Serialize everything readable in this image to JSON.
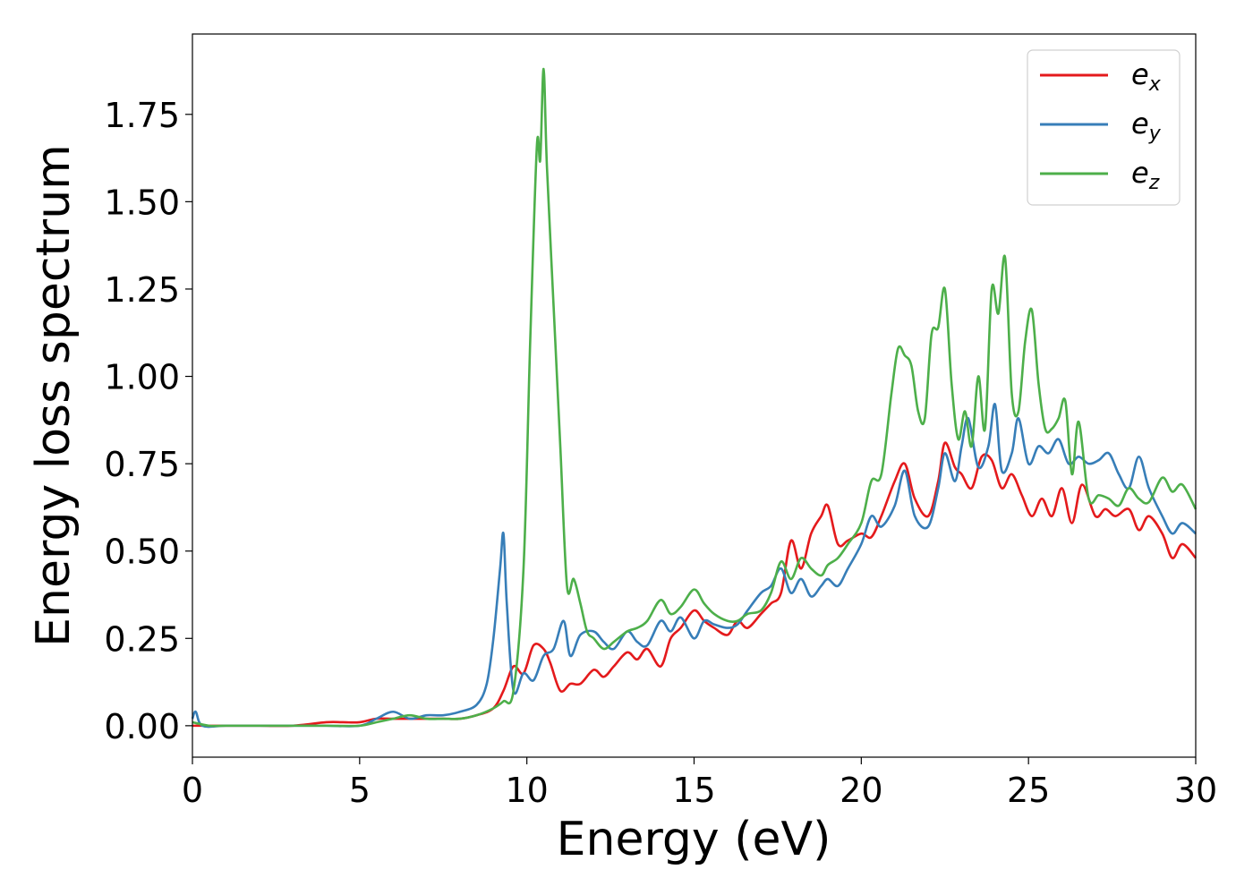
{
  "chart_data": {
    "type": "line",
    "xlabel": "Energy (eV)",
    "ylabel": "Energy loss spectrum",
    "xlim": [
      0,
      30
    ],
    "ylim": [
      -0.09,
      1.98
    ],
    "xticks": [
      0,
      5,
      10,
      15,
      20,
      25,
      30
    ],
    "xtick_labels": [
      "0",
      "5",
      "10",
      "15",
      "20",
      "25",
      "30"
    ],
    "yticks": [
      0.0,
      0.25,
      0.5,
      0.75,
      1.0,
      1.25,
      1.5,
      1.75
    ],
    "ytick_labels": [
      "0.00",
      "0.25",
      "0.50",
      "0.75",
      "1.00",
      "1.25",
      "1.50",
      "1.75"
    ],
    "grid": false,
    "legend_position": "top-right",
    "series": [
      {
        "name": "e_x",
        "legend_base": "e",
        "legend_sub": "x",
        "color": "#e41a1c",
        "x": [
          0,
          1,
          2,
          3,
          4,
          4.5,
          5,
          5.5,
          6,
          6.5,
          7,
          7.5,
          8,
          8.5,
          9,
          9.3,
          9.6,
          9.9,
          10.2,
          10.5,
          10.7,
          11,
          11.3,
          11.6,
          12,
          12.3,
          12.6,
          13,
          13.3,
          13.6,
          14,
          14.3,
          14.6,
          15,
          15.3,
          15.6,
          16,
          16.3,
          16.6,
          17,
          17.3,
          17.6,
          17.9,
          18.2,
          18.5,
          18.8,
          19,
          19.3,
          19.6,
          20,
          20.3,
          20.6,
          21,
          21.3,
          21.6,
          22,
          22.3,
          22.5,
          22.8,
          23,
          23.3,
          23.6,
          23.9,
          24.2,
          24.5,
          24.8,
          25.1,
          25.4,
          25.7,
          26,
          26.3,
          26.6,
          27,
          27.3,
          27.6,
          28,
          28.3,
          28.6,
          29,
          29.3,
          29.6,
          30
        ],
        "y": [
          0.0,
          0.0,
          0.0,
          0.0,
          0.01,
          0.01,
          0.01,
          0.02,
          0.02,
          0.02,
          0.02,
          0.02,
          0.02,
          0.03,
          0.05,
          0.1,
          0.17,
          0.15,
          0.23,
          0.22,
          0.18,
          0.1,
          0.12,
          0.12,
          0.16,
          0.14,
          0.17,
          0.21,
          0.19,
          0.22,
          0.17,
          0.25,
          0.28,
          0.33,
          0.3,
          0.28,
          0.26,
          0.3,
          0.28,
          0.32,
          0.35,
          0.38,
          0.53,
          0.45,
          0.55,
          0.6,
          0.63,
          0.52,
          0.53,
          0.55,
          0.54,
          0.6,
          0.7,
          0.75,
          0.65,
          0.6,
          0.7,
          0.81,
          0.74,
          0.72,
          0.68,
          0.77,
          0.76,
          0.68,
          0.72,
          0.66,
          0.6,
          0.65,
          0.6,
          0.68,
          0.58,
          0.69,
          0.6,
          0.62,
          0.6,
          0.62,
          0.56,
          0.6,
          0.55,
          0.48,
          0.52,
          0.48
        ]
      },
      {
        "name": "e_y",
        "legend_base": "e",
        "legend_sub": "y",
        "color": "#377eb8",
        "x": [
          0,
          0.1,
          0.3,
          1,
          2,
          3,
          4,
          5,
          5.5,
          6,
          6.5,
          7,
          7.5,
          8,
          8.5,
          8.8,
          9.0,
          9.2,
          9.3,
          9.4,
          9.6,
          9.9,
          10.2,
          10.5,
          10.8,
          11.1,
          11.3,
          11.6,
          12,
          12.3,
          12.6,
          13,
          13.3,
          13.6,
          14,
          14.3,
          14.6,
          15,
          15.3,
          15.6,
          16,
          16.3,
          16.6,
          17,
          17.3,
          17.6,
          17.9,
          18.2,
          18.5,
          18.8,
          19,
          19.3,
          19.6,
          20,
          20.3,
          20.6,
          21,
          21.3,
          21.6,
          22,
          22.3,
          22.5,
          22.8,
          23,
          23.2,
          23.5,
          23.8,
          24,
          24.2,
          24.5,
          24.7,
          25,
          25.3,
          25.6,
          25.9,
          26.2,
          26.5,
          26.8,
          27.1,
          27.4,
          27.7,
          28,
          28.3,
          28.6,
          29,
          29.3,
          29.6,
          30
        ],
        "y": [
          0.02,
          0.04,
          0.0,
          0.0,
          0.0,
          0.0,
          0.0,
          0.0,
          0.02,
          0.04,
          0.02,
          0.03,
          0.03,
          0.04,
          0.06,
          0.12,
          0.25,
          0.45,
          0.55,
          0.35,
          0.1,
          0.15,
          0.13,
          0.2,
          0.22,
          0.3,
          0.2,
          0.26,
          0.27,
          0.24,
          0.22,
          0.27,
          0.24,
          0.23,
          0.3,
          0.27,
          0.31,
          0.25,
          0.3,
          0.29,
          0.28,
          0.29,
          0.33,
          0.38,
          0.4,
          0.45,
          0.38,
          0.42,
          0.37,
          0.4,
          0.42,
          0.4,
          0.45,
          0.52,
          0.6,
          0.57,
          0.63,
          0.73,
          0.6,
          0.57,
          0.68,
          0.78,
          0.7,
          0.8,
          0.88,
          0.74,
          0.8,
          0.92,
          0.73,
          0.78,
          0.88,
          0.75,
          0.8,
          0.78,
          0.82,
          0.75,
          0.77,
          0.75,
          0.76,
          0.78,
          0.72,
          0.68,
          0.77,
          0.68,
          0.6,
          0.55,
          0.58,
          0.55
        ]
      },
      {
        "name": "e_z",
        "legend_base": "e",
        "legend_sub": "z",
        "color": "#4daf4a",
        "x": [
          0,
          0.5,
          1,
          2,
          3,
          4,
          5,
          5.5,
          6,
          6.5,
          7,
          7.5,
          8,
          8.5,
          9,
          9.3,
          9.6,
          9.9,
          10.1,
          10.3,
          10.4,
          10.5,
          10.6,
          10.8,
          11.0,
          11.2,
          11.4,
          11.6,
          11.8,
          12,
          12.3,
          12.6,
          13,
          13.3,
          13.6,
          14,
          14.3,
          14.6,
          15,
          15.3,
          15.6,
          16,
          16.3,
          16.6,
          17,
          17.3,
          17.6,
          17.9,
          18.2,
          18.5,
          18.8,
          19,
          19.3,
          19.6,
          20,
          20.3,
          20.6,
          20.9,
          21.1,
          21.3,
          21.5,
          21.7,
          21.9,
          22.1,
          22.3,
          22.5,
          22.7,
          22.9,
          23.1,
          23.3,
          23.5,
          23.7,
          23.9,
          24.1,
          24.3,
          24.5,
          24.7,
          24.9,
          25.1,
          25.3,
          25.5,
          25.7,
          25.9,
          26.1,
          26.3,
          26.5,
          26.8,
          27.1,
          27.4,
          27.7,
          28,
          28.3,
          28.6,
          29,
          29.3,
          29.6,
          30
        ],
        "y": [
          0.01,
          0.0,
          0.0,
          0.0,
          0.0,
          0.0,
          0.0,
          0.01,
          0.02,
          0.03,
          0.02,
          0.02,
          0.02,
          0.03,
          0.05,
          0.07,
          0.1,
          0.45,
          1.1,
          1.66,
          1.62,
          1.88,
          1.6,
          1.2,
          0.8,
          0.4,
          0.42,
          0.35,
          0.27,
          0.25,
          0.22,
          0.24,
          0.27,
          0.28,
          0.3,
          0.36,
          0.32,
          0.34,
          0.39,
          0.35,
          0.32,
          0.3,
          0.3,
          0.32,
          0.33,
          0.38,
          0.47,
          0.42,
          0.48,
          0.45,
          0.43,
          0.46,
          0.48,
          0.52,
          0.58,
          0.7,
          0.72,
          0.95,
          1.08,
          1.06,
          1.03,
          0.9,
          0.88,
          1.12,
          1.14,
          1.25,
          0.98,
          0.82,
          0.9,
          0.8,
          1.0,
          0.85,
          1.25,
          1.18,
          1.34,
          0.95,
          0.9,
          1.1,
          1.19,
          0.98,
          0.85,
          0.85,
          0.88,
          0.93,
          0.72,
          0.87,
          0.65,
          0.66,
          0.65,
          0.63,
          0.68,
          0.65,
          0.64,
          0.71,
          0.67,
          0.69,
          0.62
        ]
      }
    ]
  }
}
